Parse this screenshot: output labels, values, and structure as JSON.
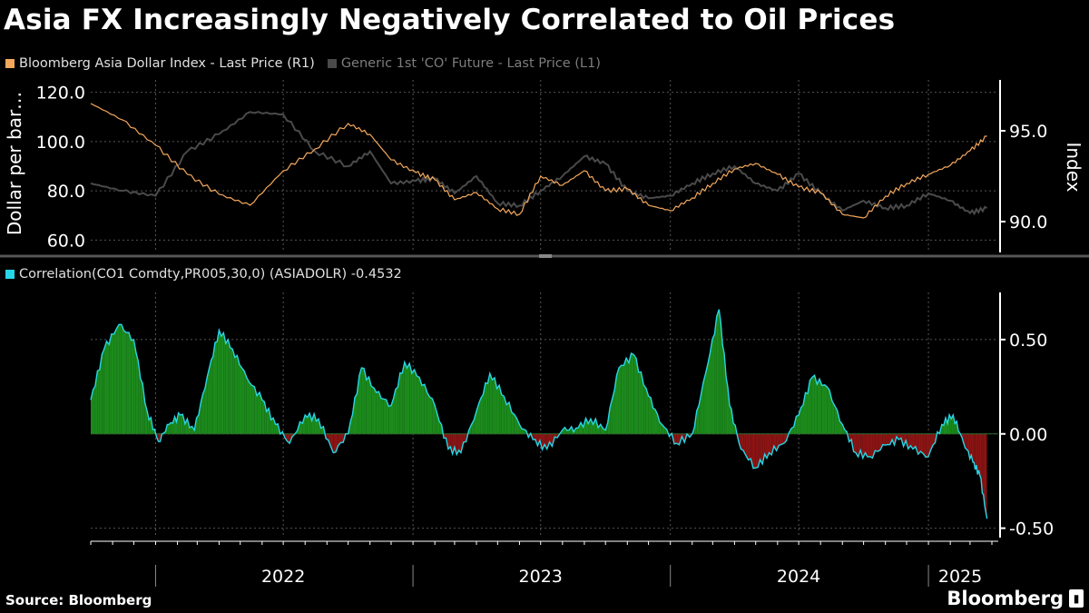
{
  "title": "Asia FX Increasingly Negatively Correlated to Oil Prices",
  "source": "Source: Bloomberg",
  "brand": "Bloomberg",
  "colors": {
    "asia_dollar": "#f4a85c",
    "oil": "#4a4a4a",
    "correlation_line": "#27d6e6",
    "positive_fill": "#1c8a1c",
    "negative_fill": "#8a1414",
    "grid": "#555555"
  },
  "chart_data": [
    {
      "type": "line",
      "legend": [
        "Bloomberg Asia Dollar Index - Last Price (R1)",
        "Generic 1st 'CO' Future - Last Price (L1)"
      ],
      "ylabel_left": "Dollar per bar…",
      "ylabel_right": "Index",
      "left_ticks": [
        "120.0",
        "100.0",
        "80.0",
        "60.0"
      ],
      "right_ticks": [
        "95.0",
        "90.0"
      ],
      "ylim_left": [
        55,
        125
      ],
      "ylim_right": [
        88.3,
        97.8
      ],
      "x_range": [
        "2021-10-01",
        "2025-04-10"
      ],
      "series": [
        {
          "name": "Bloomberg Asia Dollar Index - Last Price (R1)",
          "axis": "right",
          "x": [
            "2021-10-01",
            "2021-11-15",
            "2022-01-01",
            "2022-02-15",
            "2022-04-01",
            "2022-05-15",
            "2022-07-01",
            "2022-08-15",
            "2022-10-01",
            "2022-11-01",
            "2022-12-01",
            "2023-01-05",
            "2023-02-01",
            "2023-03-01",
            "2023-04-01",
            "2023-05-01",
            "2023-06-01",
            "2023-07-01",
            "2023-08-01",
            "2023-09-01",
            "2023-10-01",
            "2023-11-01",
            "2023-12-01",
            "2024-01-01",
            "2024-02-01",
            "2024-03-01",
            "2024-04-01",
            "2024-05-01",
            "2024-06-01",
            "2024-07-01",
            "2024-08-01",
            "2024-09-01",
            "2024-10-01",
            "2024-11-01",
            "2024-12-01",
            "2025-01-01",
            "2025-02-01",
            "2025-03-01",
            "2025-03-25"
          ],
          "values": [
            96.5,
            95.6,
            94.2,
            92.6,
            91.5,
            90.9,
            92.8,
            94.0,
            95.4,
            94.8,
            93.4,
            92.7,
            92.3,
            91.2,
            91.6,
            90.7,
            90.4,
            92.5,
            92.0,
            92.8,
            91.7,
            91.8,
            90.9,
            90.6,
            91.3,
            92.1,
            92.9,
            93.2,
            92.6,
            91.9,
            91.6,
            90.4,
            90.2,
            91.4,
            92.1,
            92.6,
            93.1,
            93.9,
            94.7
          ]
        },
        {
          "name": "Generic 1st 'CO' Future - Last Price (L1)",
          "axis": "left",
          "x": [
            "2021-10-01",
            "2021-11-15",
            "2022-01-01",
            "2022-02-15",
            "2022-04-01",
            "2022-05-15",
            "2022-07-01",
            "2022-08-15",
            "2022-10-01",
            "2022-11-01",
            "2022-12-01",
            "2023-01-05",
            "2023-02-01",
            "2023-03-01",
            "2023-04-01",
            "2023-05-01",
            "2023-06-01",
            "2023-07-01",
            "2023-08-01",
            "2023-09-01",
            "2023-10-01",
            "2023-11-01",
            "2023-12-01",
            "2024-01-01",
            "2024-02-01",
            "2024-03-01",
            "2024-04-01",
            "2024-05-01",
            "2024-06-01",
            "2024-07-01",
            "2024-08-01",
            "2024-09-01",
            "2024-10-01",
            "2024-11-01",
            "2024-12-01",
            "2025-01-01",
            "2025-02-01",
            "2025-03-01",
            "2025-03-25"
          ],
          "values": [
            83,
            80,
            78,
            96,
            103,
            112,
            111,
            96,
            90,
            96,
            83,
            84,
            85,
            79,
            86,
            75,
            74,
            80,
            86,
            94,
            91,
            80,
            77,
            78,
            83,
            87,
            90,
            83,
            80,
            87,
            79,
            72,
            76,
            73,
            74,
            79,
            76,
            71,
            73
          ]
        }
      ]
    },
    {
      "type": "area",
      "legend": [
        "Correlation(CO1 Comdty,PR005,30,0) (ASIADOLR) -0.4532"
      ],
      "y_ticks": [
        "0.50",
        "0.00",
        "-0.50"
      ],
      "ylim": [
        -0.55,
        0.75
      ],
      "x_ticks": [
        "2022",
        "2023",
        "2024",
        "2025"
      ],
      "series": [
        {
          "name": "Correlation(CO1 Comdty,PR005,30,0) (ASIADOLR) -0.4532",
          "x": [
            "2021-10-01",
            "2021-10-20",
            "2021-11-10",
            "2021-12-01",
            "2021-12-20",
            "2022-01-05",
            "2022-01-20",
            "2022-02-05",
            "2022-02-25",
            "2022-03-15",
            "2022-04-01",
            "2022-04-20",
            "2022-05-10",
            "2022-06-01",
            "2022-06-20",
            "2022-07-10",
            "2022-08-01",
            "2022-08-20",
            "2022-09-10",
            "2022-10-01",
            "2022-10-20",
            "2022-11-10",
            "2022-12-01",
            "2022-12-20",
            "2023-01-10",
            "2023-02-01",
            "2023-02-20",
            "2023-03-10",
            "2023-04-01",
            "2023-04-20",
            "2023-05-10",
            "2023-06-01",
            "2023-06-20",
            "2023-07-10",
            "2023-08-01",
            "2023-08-20",
            "2023-09-10",
            "2023-10-01",
            "2023-10-20",
            "2023-11-10",
            "2023-12-01",
            "2023-12-20",
            "2024-01-10",
            "2024-02-01",
            "2024-02-20",
            "2024-03-10",
            "2024-03-25",
            "2024-04-10",
            "2024-05-01",
            "2024-05-20",
            "2024-06-10",
            "2024-07-01",
            "2024-07-20",
            "2024-08-10",
            "2024-09-01",
            "2024-09-20",
            "2024-10-10",
            "2024-11-01",
            "2024-11-20",
            "2024-12-10",
            "2025-01-01",
            "2025-01-20",
            "2025-02-05",
            "2025-02-20",
            "2025-03-05",
            "2025-03-15",
            "2025-03-25"
          ],
          "values": [
            0.18,
            0.45,
            0.58,
            0.5,
            0.12,
            -0.04,
            0.05,
            0.1,
            0.02,
            0.3,
            0.55,
            0.45,
            0.3,
            0.18,
            0.05,
            -0.05,
            0.1,
            0.08,
            -0.1,
            0.0,
            0.35,
            0.22,
            0.15,
            0.38,
            0.3,
            0.15,
            -0.08,
            -0.1,
            0.12,
            0.32,
            0.2,
            0.05,
            -0.03,
            -0.08,
            0.02,
            0.03,
            0.08,
            0.02,
            0.35,
            0.42,
            0.2,
            0.05,
            -0.05,
            0.0,
            0.32,
            0.66,
            0.15,
            -0.08,
            -0.18,
            -0.1,
            -0.05,
            0.1,
            0.3,
            0.25,
            0.05,
            -0.1,
            -0.12,
            -0.06,
            -0.03,
            -0.08,
            -0.12,
            0.05,
            0.1,
            -0.05,
            -0.15,
            -0.22,
            -0.45
          ]
        }
      ]
    }
  ]
}
